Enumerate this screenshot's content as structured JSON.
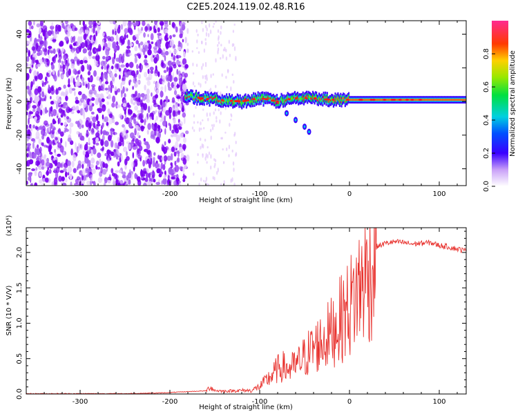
{
  "title": "C2E5.2024.119.02.48.R16",
  "colors": {
    "line": "#e8302c",
    "cmap": [
      "#ffffff",
      "#e2c8fb",
      "#a35cf2",
      "#7a00f0",
      "#3a00ff",
      "#0050ff",
      "#00c8e6",
      "#00e060",
      "#66ee00",
      "#ffd000",
      "#ff6a00",
      "#ff1a1a",
      "#ff2a90"
    ]
  },
  "chart_data": [
    {
      "type": "heatmap",
      "xlabel": "Height of straight line (km)",
      "ylabel": "Frequency (Hz)",
      "xlim": [
        -360,
        130
      ],
      "ylim": [
        -50,
        48
      ],
      "xticks": [
        -300,
        -200,
        -100,
        0,
        100
      ],
      "yticks": [
        -40,
        -20,
        0,
        20,
        40
      ],
      "colorbar": {
        "label": "Normalized spectral amplitude",
        "range": [
          0,
          1
        ],
        "ticks": [
          "0.0",
          "0.2",
          "0.4",
          "0.6",
          "0.8"
        ]
      },
      "ridge": {
        "x": [
          -183,
          -150,
          -120,
          -100,
          -80,
          -60,
          -40,
          -20,
          0,
          50,
          100,
          130
        ],
        "freq": [
          3,
          1,
          0,
          2,
          0,
          2,
          2,
          1,
          1,
          1,
          1,
          1
        ]
      },
      "branch": {
        "x": [
          -70,
          -60,
          -50,
          -45
        ],
        "freq": [
          -7,
          -11,
          -15,
          -18
        ]
      }
    },
    {
      "type": "line",
      "xlabel": "Height of straight line (km)",
      "ylabel": "SNR (10 * V/V)",
      "yscale_label": "(x10⁴)",
      "xlim": [
        -360,
        130
      ],
      "ylim": [
        0,
        2.35
      ],
      "xticks": [
        -300,
        -200,
        -100,
        0,
        100
      ],
      "yticks": [
        "0.0",
        "0.5",
        "1.0",
        "1.5",
        "2.0"
      ],
      "series": [
        {
          "x": [
            -360,
            -300,
            -250,
            -210,
            -160,
            -155,
            -150,
            -140,
            -120,
            -110,
            -100,
            -90,
            -80,
            -75,
            -70,
            -60,
            -50,
            -40,
            -30,
            -20,
            -10,
            0,
            10,
            20,
            30,
            40,
            50,
            60,
            70,
            80,
            90,
            100,
            110,
            120,
            130
          ],
          "values": [
            0.0,
            0.0,
            0.0,
            0.01,
            0.04,
            0.1,
            0.05,
            0.04,
            0.05,
            0.05,
            0.12,
            0.25,
            0.4,
            0.45,
            0.4,
            0.45,
            0.6,
            0.75,
            0.85,
            1.0,
            1.2,
            1.4,
            1.7,
            1.95,
            2.08,
            2.13,
            2.15,
            2.14,
            2.12,
            2.13,
            2.14,
            2.1,
            2.08,
            2.05,
            2.02
          ]
        }
      ]
    }
  ]
}
